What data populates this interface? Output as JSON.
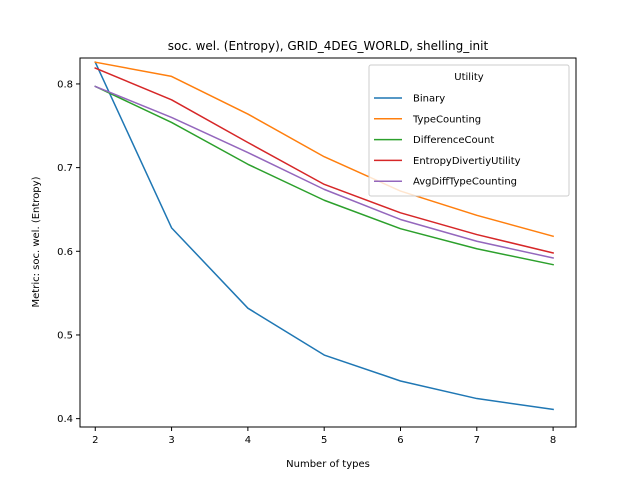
{
  "chart_data": {
    "type": "line",
    "title": "soc. wel. (Entropy), GRID_4DEG_WORLD, shelling_init",
    "xlabel": "Number of types",
    "ylabel": "Metric: soc. wel. (Entropy)",
    "x": [
      2,
      3,
      4,
      5,
      6,
      7,
      8
    ],
    "xticks": [
      "2",
      "3",
      "4",
      "5",
      "6",
      "7",
      "8"
    ],
    "yticks": [
      "0.4",
      "0.5",
      "0.6",
      "0.7",
      "0.8"
    ],
    "xlim": [
      1.8,
      8.3
    ],
    "ylim": [
      0.39,
      0.831
    ],
    "legend": {
      "title": "Utility",
      "placement": "top-right"
    },
    "grid": false,
    "series": [
      {
        "name": "Binary",
        "color": "#1f77b4",
        "values": [
          0.826,
          0.628,
          0.532,
          0.476,
          0.445,
          0.424,
          0.411
        ]
      },
      {
        "name": "TypeCounting",
        "color": "#ff7f0e",
        "values": [
          0.826,
          0.809,
          0.764,
          0.713,
          0.672,
          0.643,
          0.618
        ]
      },
      {
        "name": "DifferenceCount",
        "color": "#2ca02c",
        "values": [
          0.797,
          0.754,
          0.704,
          0.661,
          0.627,
          0.603,
          0.584
        ]
      },
      {
        "name": "EntropyDivertiyUtility",
        "color": "#d62728",
        "values": [
          0.819,
          0.781,
          0.73,
          0.68,
          0.646,
          0.62,
          0.598
        ]
      },
      {
        "name": "AvgDiffTypeCounting",
        "color": "#9467bd",
        "values": [
          0.797,
          0.76,
          0.718,
          0.674,
          0.638,
          0.612,
          0.592
        ]
      }
    ]
  }
}
